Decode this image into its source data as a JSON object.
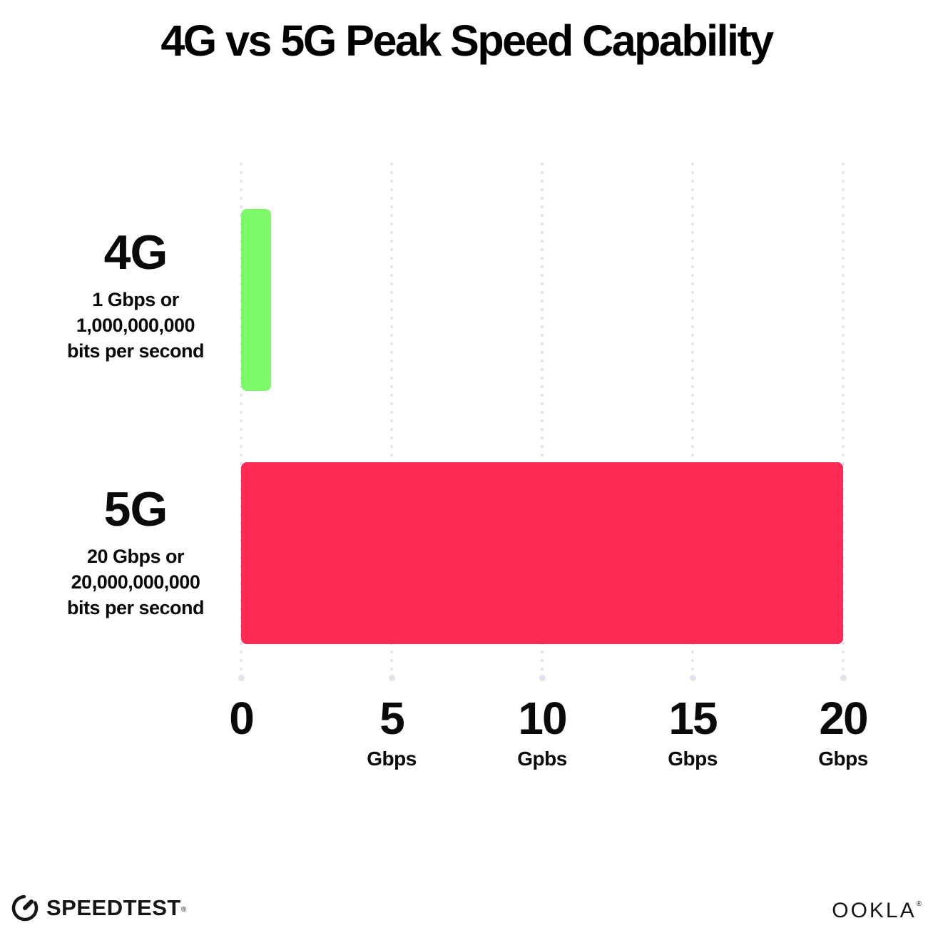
{
  "title": "4G vs 5G Peak Speed Capability",
  "chart_data": {
    "type": "bar",
    "orientation": "horizontal",
    "title": "4G vs 5G Peak Speed Capability",
    "categories": [
      "4G",
      "5G"
    ],
    "values": [
      1,
      20
    ],
    "values_unit": "Gbps",
    "colors": [
      "#7DF96A",
      "#FD2B55"
    ],
    "xlim": [
      0,
      20
    ],
    "grid": "dotted vertical gridlines every 5 Gbps",
    "ticks": [
      {
        "value": 0,
        "num": "0",
        "unit": ""
      },
      {
        "value": 5,
        "num": "5",
        "unit": "Gbps"
      },
      {
        "value": 10,
        "num": "10",
        "unit": "Gpbs"
      },
      {
        "value": 15,
        "num": "15",
        "unit": "Gbps"
      },
      {
        "value": 20,
        "num": "20",
        "unit": "Gbps"
      }
    ]
  },
  "rows": [
    {
      "label": "4G",
      "desc_line1": "1 Gbps or",
      "desc_line2": "1,000,000,000",
      "desc_line3": "bits per second"
    },
    {
      "label": "5G",
      "desc_line1": "20 Gbps or",
      "desc_line2": "20,000,000,000",
      "desc_line3": "bits per second"
    }
  ],
  "footer": {
    "speedtest_label": "SPEEDTEST",
    "speedtest_mark": "®",
    "ookla_label": "OOKLA",
    "ookla_mark": "®"
  },
  "colors": {
    "bar_4g": "#7DF96A",
    "bar_5g": "#FD2B55",
    "gridline": "#E2E2EE",
    "text": "#0A0A0A",
    "background": "#FFFFFF"
  }
}
